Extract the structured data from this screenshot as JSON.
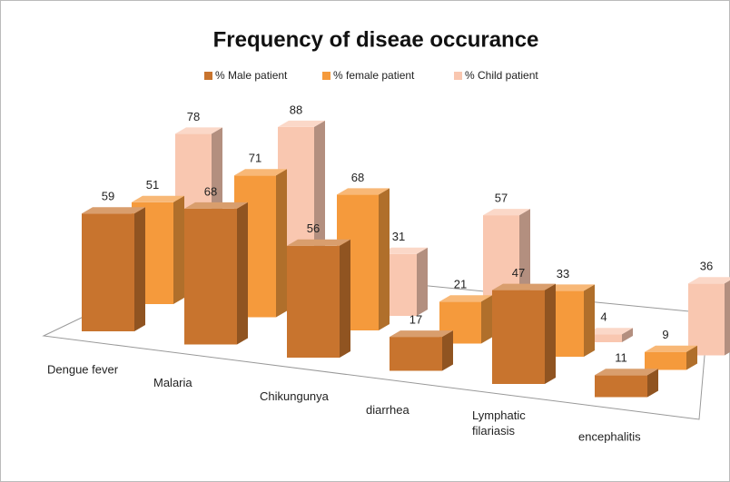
{
  "chart_data": {
    "type": "bar3d",
    "title": "Frequency of diseae occurance",
    "categories": [
      "Dengue fever",
      "Malaria",
      "Chikungunya",
      "diarrhea",
      "Lymphatic filariasis",
      "encephalitis"
    ],
    "series": [
      {
        "name": "% Male patient",
        "color": "#c8742e",
        "values": [
          59,
          68,
          56,
          17,
          47,
          11
        ]
      },
      {
        "name": "% female patient",
        "color": "#f59a3c",
        "values": [
          51,
          71,
          68,
          21,
          33,
          9
        ]
      },
      {
        "name": "% Child patient",
        "color": "#f9c7b0",
        "values": [
          78,
          88,
          31,
          57,
          4,
          36
        ]
      }
    ],
    "legend": "top"
  }
}
